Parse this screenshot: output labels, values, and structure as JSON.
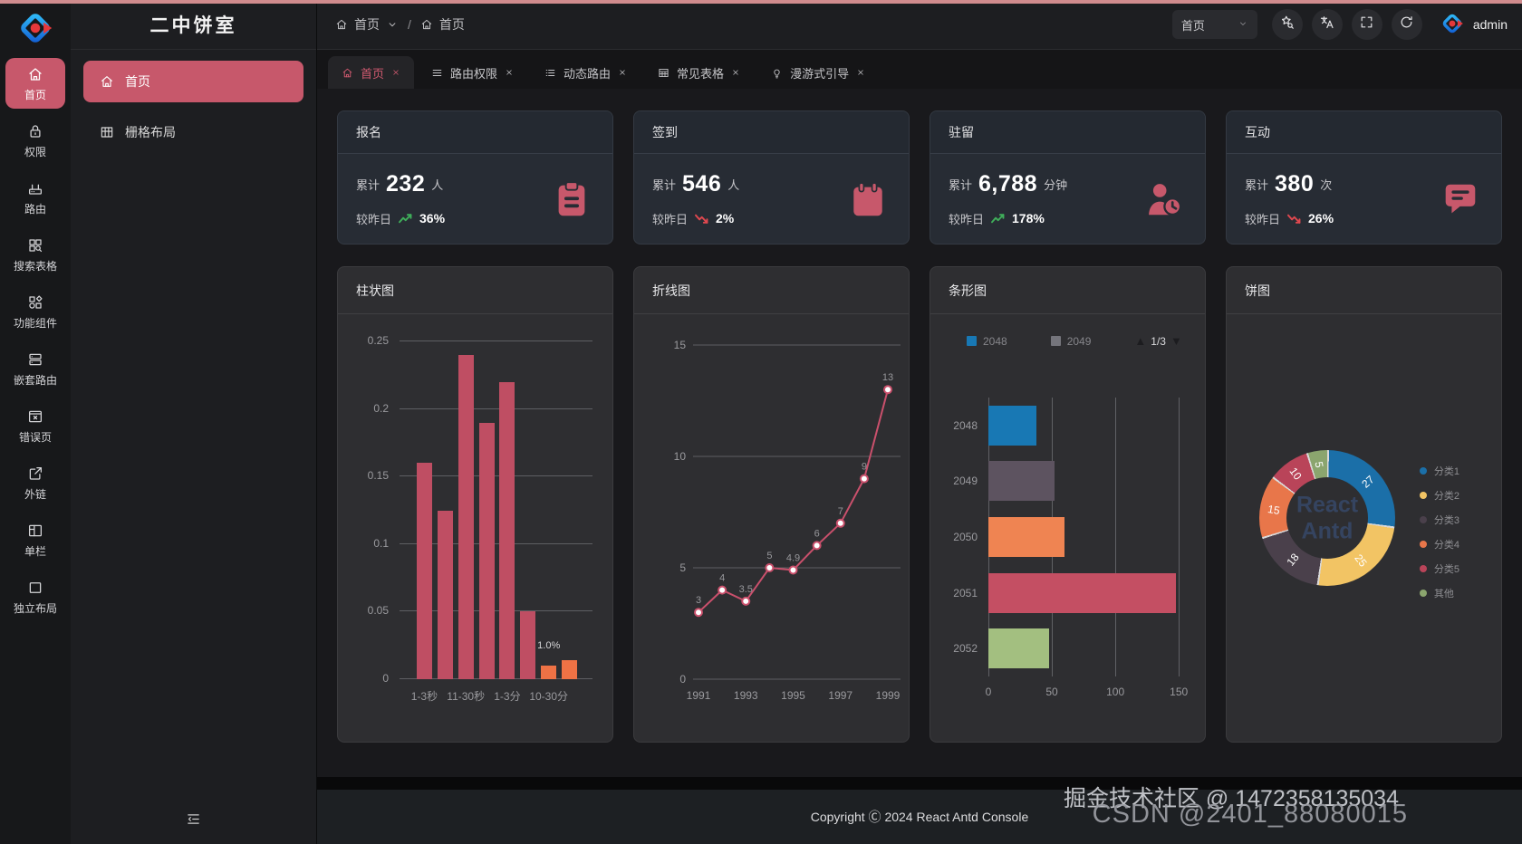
{
  "app": {
    "title": "二中饼室",
    "user": "admin"
  },
  "colors": {
    "accent": "#c7586b",
    "loading_bar": "#d08c8e",
    "trend_up": "#3fae5a",
    "trend_down": "#e0484f",
    "stat_icon": "#c7586b",
    "stat_icon_bg": "#272c34"
  },
  "sidebar": {
    "items": [
      {
        "label": "首页",
        "icon": "home",
        "name": "home",
        "active": true
      },
      {
        "label": "权限",
        "icon": "lock",
        "name": "permission",
        "active": false
      },
      {
        "label": "路由",
        "icon": "router",
        "name": "route",
        "active": false
      },
      {
        "label": "搜索表格",
        "icon": "search-table",
        "name": "search-table",
        "active": false
      },
      {
        "label": "功能组件",
        "icon": "components",
        "name": "components",
        "active": false
      },
      {
        "label": "嵌套路由",
        "icon": "nested",
        "name": "nested-route",
        "active": false
      },
      {
        "label": "错误页",
        "icon": "error",
        "name": "error-page",
        "active": false
      },
      {
        "label": "外链",
        "icon": "external",
        "name": "external-link",
        "active": false
      },
      {
        "label": "单栏",
        "icon": "single",
        "name": "single-column",
        "active": false
      },
      {
        "label": "独立布局",
        "icon": "layout",
        "name": "independent-layout",
        "active": false
      }
    ]
  },
  "submenu": {
    "items": [
      {
        "label": "首页",
        "icon": "home",
        "name": "home",
        "active": true
      },
      {
        "label": "栅格布局",
        "icon": "grid",
        "name": "grid-layout",
        "active": false
      }
    ]
  },
  "header": {
    "breadcrumbs": [
      {
        "label": "首页"
      },
      {
        "label": "首页"
      }
    ],
    "separator": "/",
    "page_select": "首页",
    "actions": [
      {
        "icon": "skin",
        "name": "skin-theme"
      },
      {
        "icon": "translate",
        "name": "language-switch"
      },
      {
        "icon": "fullscreen",
        "name": "fullscreen"
      },
      {
        "icon": "reload",
        "name": "reload"
      }
    ]
  },
  "tabs": [
    {
      "label": "首页",
      "icon": "home",
      "name": "home",
      "active": true
    },
    {
      "label": "路由权限",
      "icon": "menu",
      "name": "route-permission",
      "active": false
    },
    {
      "label": "动态路由",
      "icon": "list",
      "name": "dynamic-route",
      "active": false
    },
    {
      "label": "常见表格",
      "icon": "table",
      "name": "common-table",
      "active": false
    },
    {
      "label": "漫游式引导",
      "icon": "bulb",
      "name": "tour-guide",
      "active": false
    }
  ],
  "stats": [
    {
      "name": "signup",
      "title": "报名",
      "prefix": "累计",
      "value": "232",
      "unit": "人",
      "compare_label": "较昨日",
      "trend": "up",
      "percent": "36%",
      "icon": "clipboard"
    },
    {
      "name": "checkin",
      "title": "签到",
      "prefix": "累计",
      "value": "546",
      "unit": "人",
      "compare_label": "较昨日",
      "trend": "down",
      "percent": "2%",
      "icon": "calendar"
    },
    {
      "name": "stay",
      "title": "驻留",
      "prefix": "累计",
      "value": "6,788",
      "unit": "分钟",
      "compare_label": "较昨日",
      "trend": "up",
      "percent": "178%",
      "icon": "user-clock"
    },
    {
      "name": "interaction",
      "title": "互动",
      "prefix": "累计",
      "value": "380",
      "unit": "次",
      "compare_label": "较昨日",
      "trend": "down",
      "percent": "26%",
      "icon": "comment"
    }
  ],
  "chart_data": [
    {
      "id": "bar",
      "type": "bar",
      "title": "柱状图",
      "yticks": [
        0,
        0.05,
        0.1,
        0.15,
        0.2,
        0.25
      ],
      "ylim": [
        0,
        0.25
      ],
      "xtick_labels": [
        "1-3秒",
        "11-30秒",
        "1-3分",
        "10-30分"
      ],
      "values": [
        0.16,
        0.125,
        0.24,
        0.19,
        0.22,
        0.05,
        0.01,
        0.014
      ],
      "bar_colors": [
        "#bf4e63",
        "#bf4e63",
        "#bf4e63",
        "#bf4e63",
        "#bf4e63",
        "#bf4e63",
        "#ee7245",
        "#ee7245"
      ],
      "annotation": {
        "text": "1.0%",
        "bar_index": 6
      },
      "grid": true
    },
    {
      "id": "line",
      "type": "line",
      "title": "折线图",
      "x": [
        1991,
        1992,
        1993,
        1994,
        1995,
        1996,
        1997,
        1998,
        1999
      ],
      "values": [
        3,
        4,
        3.5,
        5,
        4.9,
        6,
        7,
        9,
        13
      ],
      "point_labels": [
        "3",
        "4",
        "3.5",
        "5",
        "4.9",
        "6",
        "7",
        "9",
        "13"
      ],
      "yticks": [
        0,
        5,
        10,
        15
      ],
      "ylim": [
        0,
        15
      ],
      "xticks": [
        1991,
        1993,
        1995,
        1997,
        1999
      ],
      "line_color": "#ca506c",
      "grid": true
    },
    {
      "id": "hbar",
      "type": "bar-horizontal",
      "title": "条形图",
      "legend": {
        "items": [
          {
            "label": "2048",
            "color": "#1878b4"
          },
          {
            "label": "2049",
            "color": "#75757c"
          }
        ],
        "pagination": "1/3"
      },
      "categories": [
        "2048",
        "2049",
        "2050",
        "2051",
        "2052"
      ],
      "values": [
        38,
        52,
        60,
        148,
        48
      ],
      "bar_colors": [
        "#1878b4",
        "#5d5360",
        "#ef8452",
        "#c44f63",
        "#a3bf80"
      ],
      "xticks": [
        0,
        50,
        100,
        150
      ],
      "xlim": [
        0,
        152
      ],
      "grid": true
    },
    {
      "id": "pie",
      "type": "pie",
      "title": "饼图",
      "center_watermark": "React Antd",
      "slices": [
        {
          "label": "分类1",
          "value": 27,
          "color": "#1b6fa8"
        },
        {
          "label": "分类2",
          "value": 25,
          "color": "#f2c464"
        },
        {
          "label": "分类3",
          "value": 18,
          "color": "#4a404b"
        },
        {
          "label": "分类4",
          "value": 15,
          "color": "#e8764a"
        },
        {
          "label": "分类5",
          "value": 10,
          "color": "#b94459"
        },
        {
          "label": "其他",
          "value": 5,
          "color": "#8ba56e"
        }
      ],
      "legend_position": "right"
    }
  ],
  "footer": {
    "copyright": "Copyright Ⓒ 2024 React Antd Console"
  },
  "watermarks": {
    "line1": "掘金技术社区 @ 1472358135034",
    "line2": "CSDN @2401_88080015"
  }
}
